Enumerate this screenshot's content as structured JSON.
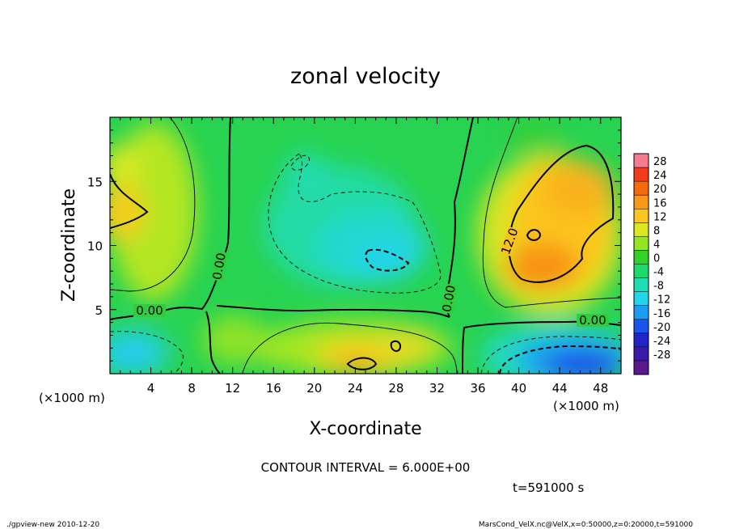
{
  "chart_data": {
    "type": "heatmap",
    "title": "zonal velocity",
    "xlabel": "X-coordinate",
    "ylabel": "Z-coordinate",
    "x_unit_note": "(×1000 m)",
    "y_unit_note": "(×1000 m)",
    "xlim": [
      0,
      50
    ],
    "ylim": [
      0,
      20
    ],
    "x_ticks": [
      4,
      8,
      12,
      16,
      20,
      24,
      28,
      32,
      36,
      40,
      44,
      48
    ],
    "y_ticks": [
      5,
      10,
      15
    ],
    "colorbar": {
      "levels": [
        28,
        24,
        20,
        16,
        12,
        8,
        4,
        0,
        -4,
        -8,
        -12,
        -16,
        -20,
        -24,
        -28
      ],
      "colors": [
        "#f77b8f",
        "#f23a1e",
        "#f56a0a",
        "#f89a18",
        "#fcc51f",
        "#dbe821",
        "#95e622",
        "#35d12b",
        "#1ed96b",
        "#20dcb2",
        "#21d5ec",
        "#1b9ef2",
        "#1856ee",
        "#1f25c9",
        "#3a1aa6",
        "#5a1a8e"
      ]
    },
    "contour_labels": [
      "0.00",
      "0.00",
      "0.00",
      "0.00",
      "12.0"
    ],
    "contour_interval_text": "CONTOUR INTERVAL = 6.000E+00",
    "time_text": "t=591000 s",
    "footer_left": "./gpview-new  2010-12-20",
    "footer_right": "MarsCond_VelX.nc@VelX,x=0:50000,z=0:20000,t=591000"
  }
}
